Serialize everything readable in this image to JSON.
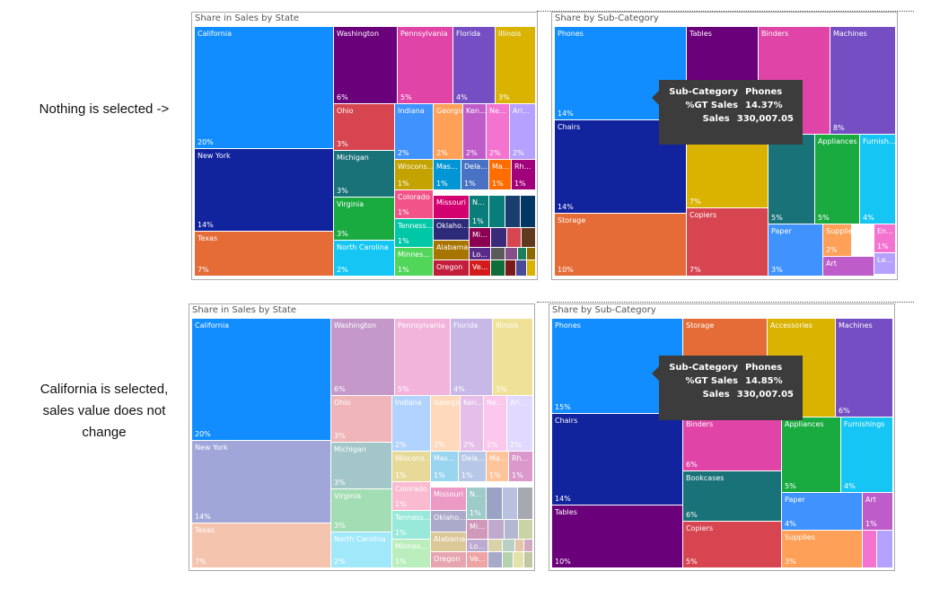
{
  "annotations": {
    "top": "Nothing is selected ->",
    "bottom": "California is selected, sales value does not change"
  },
  "chart_data": [
    {
      "type": "treemap",
      "title": "Share in Sales by State",
      "state": "nothing selected",
      "tiles": [
        {
          "name": "California",
          "pct": "20%",
          "color": "#118DFF"
        },
        {
          "name": "New York",
          "pct": "14%",
          "color": "#12239E"
        },
        {
          "name": "Texas",
          "pct": "7%",
          "color": "#E66C37"
        },
        {
          "name": "Washington",
          "pct": "6%",
          "color": "#6B007B"
        },
        {
          "name": "Pennsylvania",
          "pct": "5%",
          "color": "#E044A7"
        },
        {
          "name": "Florida",
          "pct": "4%",
          "color": "#744EC2"
        },
        {
          "name": "Illinois",
          "pct": "3%",
          "color": "#D9B300"
        },
        {
          "name": "Ohio",
          "pct": "3%",
          "color": "#D64550"
        },
        {
          "name": "Michigan",
          "pct": "3%",
          "color": "#197278"
        },
        {
          "name": "Virginia",
          "pct": "3%",
          "color": "#1AAB40"
        },
        {
          "name": "North Carolina",
          "pct": "2%",
          "color": "#15C6F4"
        },
        {
          "name": "Indiana",
          "pct": "2%",
          "color": "#4092FF"
        },
        {
          "name": "Georgia",
          "pct": "2%",
          "color": "#FFA058"
        },
        {
          "name": "Ken...",
          "pct": "2%",
          "color": "#BE5DC9"
        },
        {
          "name": "Ne...",
          "pct": "2%",
          "color": "#F472D0"
        },
        {
          "name": "Ari...",
          "pct": "2%",
          "color": "#B5A1FF"
        },
        {
          "name": "Wiscons...",
          "pct": "1%",
          "color": "#C4A200"
        },
        {
          "name": "Mas...",
          "pct": "1%",
          "color": "#0096D6"
        },
        {
          "name": "Dela...",
          "pct": "1%",
          "color": "#4A72C4"
        },
        {
          "name": "Ma...",
          "pct": "1%",
          "color": "#FF6C00"
        },
        {
          "name": "Rh...",
          "pct": "1%",
          "color": "#A2007B"
        },
        {
          "name": "Colorado",
          "pct": "1%",
          "color": "#F2548A"
        },
        {
          "name": "Missouri",
          "pct": "",
          "color": "#D3006F"
        },
        {
          "name": "N...",
          "pct": "1%",
          "color": "#087D79"
        },
        {
          "name": "Tenness...",
          "pct": "1%",
          "color": "#00C8A6"
        },
        {
          "name": "Oklaho...",
          "pct": "",
          "color": "#2E2A7A"
        },
        {
          "name": "Minnes...",
          "pct": "1%",
          "color": "#52D65A"
        },
        {
          "name": "Alabama",
          "pct": "",
          "color": "#A87400"
        },
        {
          "name": "Oregon",
          "pct": "",
          "color": "#C21D3B"
        },
        {
          "name": "Mi...",
          "pct": "",
          "color": "#8B0050"
        },
        {
          "name": "Lo...",
          "pct": "",
          "color": "#5A2A8A"
        },
        {
          "name": "Ve...",
          "pct": "",
          "color": "#D41B1B"
        }
      ]
    },
    {
      "type": "treemap",
      "title": "Share by Sub-Category",
      "state": "nothing selected",
      "tiles": [
        {
          "name": "Phones",
          "pct": "14%",
          "color": "#118DFF"
        },
        {
          "name": "Chairs",
          "pct": "14%",
          "color": "#12239E"
        },
        {
          "name": "Storage",
          "pct": "10%",
          "color": "#E66C37"
        },
        {
          "name": "Tables",
          "pct": "",
          "color": "#6B007B"
        },
        {
          "name": "Binders",
          "pct": "",
          "color": "#E044A7"
        },
        {
          "name": "Machines",
          "pct": "8%",
          "color": "#744EC2"
        },
        {
          "name": "",
          "pct": "7%",
          "color": "#D9B300"
        },
        {
          "name": "Copiers",
          "pct": "7%",
          "color": "#D64550"
        },
        {
          "name": "",
          "pct": "5%",
          "color": "#197278"
        },
        {
          "name": "Appliances",
          "pct": "5%",
          "color": "#1AAB40"
        },
        {
          "name": "Furnish...",
          "pct": "4%",
          "color": "#15C6F4"
        },
        {
          "name": "Paper",
          "pct": "3%",
          "color": "#4092FF"
        },
        {
          "name": "Supplies",
          "pct": "2%",
          "color": "#FFA058"
        },
        {
          "name": "En...",
          "pct": "1%",
          "color": "#F472D0"
        },
        {
          "name": "Art",
          "pct": "",
          "color": "#BE5DC9"
        },
        {
          "name": "La...",
          "pct": "",
          "color": "#B5A1FF"
        }
      ],
      "tooltip": {
        "k1": "Sub-Category",
        "v1": "Phones",
        "k2": "%GT Sales",
        "v2": "14.37%",
        "k3": "Sales",
        "v3": "330,007.05"
      }
    },
    {
      "type": "treemap",
      "title": "Share in Sales by State",
      "state": "California selected",
      "tiles": [
        {
          "name": "California",
          "pct": "20%",
          "color": "#118DFF"
        },
        {
          "name": "New York",
          "pct": "14%",
          "color": "#A0A7D8"
        },
        {
          "name": "Texas",
          "pct": "7%",
          "color": "#F5C4AF"
        },
        {
          "name": "Washington",
          "pct": "6%",
          "color": "#C499CA"
        },
        {
          "name": "Pennsylvania",
          "pct": "5%",
          "color": "#F3B4DC"
        },
        {
          "name": "Florida",
          "pct": "4%",
          "color": "#C7B8E7"
        },
        {
          "name": "Illinois",
          "pct": "3%",
          "color": "#F0E199"
        },
        {
          "name": "Ohio",
          "pct": "3%",
          "color": "#EFB5B9"
        },
        {
          "name": "Michigan",
          "pct": "3%",
          "color": "#A3C7C9"
        },
        {
          "name": "Virginia",
          "pct": "3%",
          "color": "#A3DDB3"
        },
        {
          "name": "North Carolina",
          "pct": "2%",
          "color": "#A1E8FB"
        },
        {
          "name": "Indiana",
          "pct": "2%",
          "color": "#B3D3FF"
        },
        {
          "name": "Georgia",
          "pct": "2%",
          "color": "#FFD9BC"
        },
        {
          "name": "Ken...",
          "pct": "2%",
          "color": "#E5BEE9"
        },
        {
          "name": "Ne...",
          "pct": "2%",
          "color": "#FBC7EC"
        },
        {
          "name": "Ari...",
          "pct": "2%",
          "color": "#E1D9FF"
        },
        {
          "name": "Wiscons...",
          "pct": "1%",
          "color": "#E7DA99"
        },
        {
          "name": "Mas...",
          "pct": "1%",
          "color": "#99D5EF"
        },
        {
          "name": "Dela...",
          "pct": "1%",
          "color": "#B7C7E7"
        },
        {
          "name": "Ma...",
          "pct": "1%",
          "color": "#FFC499"
        },
        {
          "name": "Rh...",
          "pct": "1%",
          "color": "#DA99CA"
        },
        {
          "name": "Colorado",
          "pct": "1%",
          "color": "#FABBD0"
        },
        {
          "name": "Missouri",
          "pct": "",
          "color": "#ED99C5"
        },
        {
          "name": "N...",
          "pct": "1%",
          "color": "#9CCBC9"
        },
        {
          "name": "Tenness...",
          "pct": "1%",
          "color": "#99E9DB"
        },
        {
          "name": "Oklaho...",
          "pct": "",
          "color": "#ABAACA"
        },
        {
          "name": "Minnes...",
          "pct": "1%",
          "color": "#BAEFBD"
        },
        {
          "name": "Alabama",
          "pct": "",
          "color": "#DCC799"
        },
        {
          "name": "Oregon",
          "pct": "",
          "color": "#E7A5B1"
        },
        {
          "name": "Mi...",
          "pct": "",
          "color": "#D199B9"
        },
        {
          "name": "Lo...",
          "pct": "",
          "color": "#BDAAD0"
        },
        {
          "name": "Ve...",
          "pct": "",
          "color": "#EEA4A4"
        }
      ]
    },
    {
      "type": "treemap",
      "title": "Share by Sub-Category",
      "state": "California selected",
      "tiles": [
        {
          "name": "Phones",
          "pct": "15%",
          "color": "#118DFF"
        },
        {
          "name": "Chairs",
          "pct": "14%",
          "color": "#12239E"
        },
        {
          "name": "Tables",
          "pct": "10%",
          "color": "#6B007B"
        },
        {
          "name": "Storage",
          "pct": "",
          "color": "#E66C37"
        },
        {
          "name": "Accessories",
          "pct": "",
          "color": "#D9B300"
        },
        {
          "name": "Machines",
          "pct": "6%",
          "color": "#744EC2"
        },
        {
          "name": "Binders",
          "pct": "6%",
          "color": "#E044A7"
        },
        {
          "name": "Bookcases",
          "pct": "6%",
          "color": "#197278"
        },
        {
          "name": "Copiers",
          "pct": "5%",
          "color": "#D64550"
        },
        {
          "name": "Appliances",
          "pct": "5%",
          "color": "#1AAB40"
        },
        {
          "name": "Furnishings",
          "pct": "4%",
          "color": "#15C6F4"
        },
        {
          "name": "Paper",
          "pct": "4%",
          "color": "#4092FF"
        },
        {
          "name": "Art",
          "pct": "1%",
          "color": "#BE5DC9"
        },
        {
          "name": "Supplies",
          "pct": "3%",
          "color": "#FFA058"
        },
        {
          "name": "",
          "pct": "",
          "color": "#F472D0"
        },
        {
          "name": "",
          "pct": "",
          "color": "#B5A1FF"
        }
      ],
      "tooltip": {
        "k1": "Sub-Category",
        "v1": "Phones",
        "k2": "%GT Sales",
        "v2": "14.85%",
        "k3": "Sales",
        "v3": "330,007.05"
      }
    }
  ]
}
